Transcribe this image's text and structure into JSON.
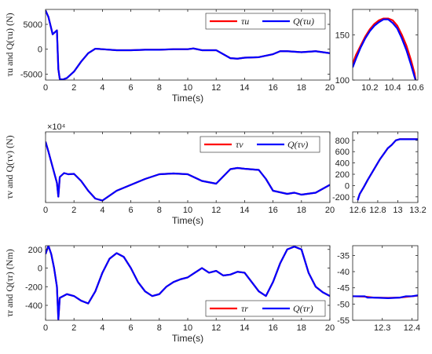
{
  "figure": {
    "panels": [
      {
        "id": "tau-u-main",
        "ylabel": "τu and Q(τu) (N)",
        "xlabel": "Time(s)",
        "xlim": [
          0,
          20
        ],
        "ylim": [
          -6200,
          8000
        ],
        "xticks": [
          0,
          2,
          4,
          6,
          8,
          10,
          12,
          14,
          16,
          18,
          20
        ],
        "yticks": [
          5000,
          0,
          -5000
        ],
        "yticklabels": [
          "5000",
          "0",
          "-5000"
        ],
        "exponent": "",
        "legend": {
          "position": "top-right",
          "entries": [
            "τu",
            "Q(τu)"
          ]
        }
      },
      {
        "id": "tau-u-zoom",
        "xlim": [
          10.05,
          10.62
        ],
        "ylim": [
          100,
          178
        ],
        "xticks": [
          10.2,
          10.4,
          10.6
        ],
        "xticklabels": [
          "10.2",
          "10.4",
          "10.6"
        ],
        "yticks": [
          150,
          100
        ],
        "yticklabels": [
          "150",
          "100"
        ]
      },
      {
        "id": "tau-v-main",
        "ylabel": "τv and Q(τv) (N)",
        "xlabel": "Time(s)",
        "xlim": [
          0,
          20
        ],
        "ylim": [
          -8,
          10
        ],
        "xticks": [
          0,
          2,
          4,
          6,
          8,
          10,
          12,
          14,
          16,
          18,
          20
        ],
        "yticks": [],
        "yticklabels": [],
        "exponent": "×10⁴",
        "legend": {
          "position": "top-left",
          "entries": [
            "τv",
            "Q(τv)"
          ]
        }
      },
      {
        "id": "tau-v-zoom",
        "xlim": [
          12.55,
          13.2
        ],
        "ylim": [
          -300,
          950
        ],
        "xticks": [
          12.6,
          12.8,
          13,
          13.2
        ],
        "xticklabels": [
          "12.6",
          "12.8",
          "13",
          "13.2"
        ],
        "yticks": [
          800,
          600,
          400,
          200,
          0,
          -200
        ],
        "yticklabels": [
          "800",
          "600",
          "400",
          "200",
          "0",
          "-200"
        ]
      },
      {
        "id": "tau-r-main",
        "ylabel": "τr and Q(τr) (Nm)",
        "xlabel": "Time(s)",
        "xlim": [
          0,
          20
        ],
        "ylim": [
          -560,
          240
        ],
        "xticks": [
          0,
          2,
          4,
          6,
          8,
          10,
          12,
          14,
          16,
          18,
          20
        ],
        "yticks": [
          200,
          0,
          -200,
          -400
        ],
        "yticklabels": [
          "200",
          "0",
          "-200",
          "-400"
        ],
        "exponent": "",
        "legend": {
          "position": "bottom-right",
          "entries": [
            "τr",
            "Q(τr)"
          ]
        }
      },
      {
        "id": "tau-r-zoom",
        "xlim": [
          12.2,
          12.42
        ],
        "ylim": [
          -55,
          -32
        ],
        "xticks": [
          12.3,
          12.4
        ],
        "xticklabels": [
          "12.3",
          "12.4"
        ],
        "yticks": [
          -35,
          -40,
          -45,
          -50,
          -55
        ],
        "yticklabels": [
          "-35",
          "-40",
          "-45",
          "-50",
          "-55"
        ]
      }
    ],
    "colors": {
      "series1": "#ff0000",
      "series2": "#0000ff",
      "axes": "#222222"
    }
  },
  "chart_data": [
    {
      "type": "line",
      "title": "",
      "xlabel": "Time(s)",
      "ylabel": "τu and Q(τu) (N)",
      "xlim": [
        0,
        20
      ],
      "ylim": [
        -6200,
        8000
      ],
      "grid": false,
      "legend": "top-right",
      "series": [
        {
          "name": "τu",
          "x": [
            0,
            0.2,
            0.5,
            0.8,
            0.9,
            1.0,
            1.2,
            1.5,
            2,
            2.5,
            3,
            3.5,
            4,
            5,
            6,
            7,
            8,
            9,
            10,
            10.4,
            11,
            12,
            13,
            13.5,
            14,
            15,
            16,
            16.5,
            17,
            18,
            19,
            20
          ],
          "y": [
            7800,
            6500,
            3000,
            3800,
            -4000,
            -6000,
            -6100,
            -5800,
            -4500,
            -2500,
            -800,
            100,
            0,
            -200,
            -200,
            -100,
            -100,
            0,
            0,
            150,
            -200,
            -200,
            -1800,
            -1900,
            -1700,
            -1600,
            -1000,
            -400,
            -400,
            -600,
            -400,
            -800
          ]
        },
        {
          "name": "Q(τu)",
          "x": [
            0,
            0.2,
            0.5,
            0.8,
            0.9,
            1.0,
            1.2,
            1.5,
            2,
            2.5,
            3,
            3.5,
            4,
            5,
            6,
            7,
            8,
            9,
            10,
            10.4,
            11,
            12,
            13,
            13.5,
            14,
            15,
            16,
            16.5,
            17,
            18,
            19,
            20
          ],
          "y": [
            7800,
            6500,
            3000,
            3800,
            -4000,
            -6000,
            -6100,
            -5800,
            -4500,
            -2500,
            -800,
            100,
            0,
            -200,
            -200,
            -100,
            -100,
            0,
            0,
            150,
            -200,
            -200,
            -1800,
            -1900,
            -1700,
            -1600,
            -1000,
            -400,
            -400,
            -600,
            -400,
            -800
          ]
        }
      ]
    },
    {
      "type": "line",
      "title": "",
      "xlabel": "",
      "ylabel": "",
      "xlim": [
        10.05,
        10.62
      ],
      "ylim": [
        100,
        178
      ],
      "grid": false,
      "series": [
        {
          "name": "τu",
          "x": [
            10.05,
            10.08,
            10.12,
            10.16,
            10.2,
            10.24,
            10.28,
            10.32,
            10.36,
            10.4,
            10.44,
            10.48,
            10.52,
            10.56,
            10.59,
            10.6
          ],
          "y": [
            118,
            128,
            138,
            148,
            156,
            162,
            166,
            168,
            168,
            166,
            160,
            150,
            138,
            122,
            108,
            100
          ]
        },
        {
          "name": "Q(τu)",
          "x": [
            10.05,
            10.08,
            10.12,
            10.16,
            10.2,
            10.24,
            10.28,
            10.32,
            10.36,
            10.4,
            10.44,
            10.48,
            10.52,
            10.56,
            10.59,
            10.6
          ],
          "y": [
            114,
            124,
            136,
            146,
            154,
            160,
            164,
            167,
            167,
            163,
            157,
            146,
            133,
            117,
            104,
            100
          ]
        }
      ]
    },
    {
      "type": "line",
      "title": "",
      "xlabel": "Time(s)",
      "ylabel": "τv and Q(τv) (N)",
      "xlim": [
        0,
        20
      ],
      "ylim": [
        -8,
        10
      ],
      "grid": false,
      "legend": "top-left",
      "series": [
        {
          "name": "τv",
          "x": [
            0,
            0.2,
            0.5,
            0.8,
            0.9,
            1.0,
            1.3,
            1.6,
            2,
            2.5,
            3,
            3.5,
            4,
            5,
            6,
            7,
            8,
            9,
            10,
            11,
            12,
            13,
            13.5,
            14,
            15,
            15.5,
            16,
            17,
            17.5,
            18,
            19,
            20
          ],
          "y": [
            7.5,
            5,
            1,
            -3,
            -6.5,
            -1.5,
            -0.5,
            -0.8,
            -0.7,
            -2.5,
            -5,
            -7,
            -7.5,
            -5,
            -3.5,
            -2,
            -0.8,
            -0.6,
            -0.8,
            -2.5,
            -3.2,
            0.5,
            0.8,
            0.6,
            0.3,
            -2,
            -5,
            -5.8,
            -5.5,
            -6,
            -5.5,
            -3.5
          ]
        },
        {
          "name": "Q(τv)",
          "x": [
            0,
            0.2,
            0.5,
            0.8,
            0.9,
            1.0,
            1.3,
            1.6,
            2,
            2.5,
            3,
            3.5,
            4,
            5,
            6,
            7,
            8,
            9,
            10,
            11,
            12,
            13,
            13.5,
            14,
            15,
            15.5,
            16,
            17,
            17.5,
            18,
            19,
            20
          ],
          "y": [
            7.5,
            5,
            1,
            -3,
            -6.5,
            -1.5,
            -0.5,
            -0.8,
            -0.7,
            -2.5,
            -5,
            -7,
            -7.5,
            -5,
            -3.5,
            -2,
            -0.8,
            -0.6,
            -0.8,
            -2.5,
            -3.2,
            0.5,
            0.8,
            0.6,
            0.3,
            -2,
            -5,
            -5.8,
            -5.5,
            -6,
            -5.5,
            -3.5
          ]
        }
      ]
    },
    {
      "type": "line",
      "title": "",
      "xlabel": "",
      "ylabel": "",
      "xlim": [
        12.55,
        13.2
      ],
      "ylim": [
        -300,
        950
      ],
      "grid": false,
      "series": [
        {
          "name": "τv",
          "x": [
            12.6,
            12.62,
            12.66,
            12.7,
            12.74,
            12.78,
            12.82,
            12.86,
            12.9,
            12.94,
            12.98,
            13.02,
            13.2
          ],
          "y": [
            -260,
            -150,
            -30,
            100,
            220,
            340,
            460,
            560,
            660,
            720,
            800,
            820,
            820
          ]
        },
        {
          "name": "Q(τv)",
          "x": [
            12.6,
            12.62,
            12.66,
            12.7,
            12.74,
            12.78,
            12.82,
            12.86,
            12.9,
            12.94,
            12.98,
            13.02,
            13.2
          ],
          "y": [
            -260,
            -150,
            -30,
            100,
            220,
            340,
            460,
            560,
            660,
            720,
            800,
            820,
            820
          ]
        }
      ]
    },
    {
      "type": "line",
      "title": "",
      "xlabel": "Time(s)",
      "ylabel": "τr and Q(τr) (Nm)",
      "xlim": [
        0,
        20
      ],
      "ylim": [
        -560,
        240
      ],
      "grid": false,
      "legend": "bottom-right",
      "series": [
        {
          "name": "τr",
          "x": [
            0,
            0.2,
            0.4,
            0.6,
            0.8,
            0.9,
            1.0,
            1.5,
            2,
            2.5,
            3,
            3.5,
            4,
            4.5,
            5,
            5.5,
            6,
            6.5,
            7,
            7.5,
            8,
            8.5,
            9,
            9.5,
            10,
            10.5,
            11,
            11.5,
            12,
            12.5,
            13,
            13.5,
            14,
            14.5,
            15,
            15.5,
            16,
            16.5,
            17,
            17.5,
            18,
            18.5,
            19,
            19.5,
            20
          ],
          "y": [
            150,
            240,
            150,
            0,
            -200,
            -550,
            -320,
            -280,
            -300,
            -350,
            -380,
            -250,
            -50,
            100,
            160,
            120,
            0,
            -150,
            -250,
            -300,
            -280,
            -200,
            -150,
            -120,
            -100,
            -50,
            0,
            -50,
            -30,
            -80,
            -70,
            -40,
            -50,
            -150,
            -250,
            -300,
            -150,
            50,
            200,
            230,
            200,
            -50,
            -200,
            -260,
            -300
          ]
        },
        {
          "name": "Q(τr)",
          "x": [
            0,
            0.2,
            0.4,
            0.6,
            0.8,
            0.9,
            1.0,
            1.5,
            2,
            2.5,
            3,
            3.5,
            4,
            4.5,
            5,
            5.5,
            6,
            6.5,
            7,
            7.5,
            8,
            8.5,
            9,
            9.5,
            10,
            10.5,
            11,
            11.5,
            12,
            12.5,
            13,
            13.5,
            14,
            14.5,
            15,
            15.5,
            16,
            16.5,
            17,
            17.5,
            18,
            18.5,
            19,
            19.5,
            20
          ],
          "y": [
            150,
            240,
            150,
            0,
            -200,
            -550,
            -320,
            -280,
            -300,
            -350,
            -380,
            -250,
            -50,
            100,
            160,
            120,
            0,
            -150,
            -250,
            -300,
            -280,
            -200,
            -150,
            -120,
            -100,
            -50,
            0,
            -50,
            -30,
            -80,
            -70,
            -40,
            -50,
            -150,
            -250,
            -300,
            -150,
            50,
            200,
            230,
            200,
            -50,
            -200,
            -260,
            -300
          ]
        }
      ]
    },
    {
      "type": "line",
      "title": "",
      "xlabel": "",
      "ylabel": "",
      "xlim": [
        12.2,
        12.42
      ],
      "ylim": [
        -55,
        -32
      ],
      "grid": false,
      "series": [
        {
          "name": "τr",
          "x": [
            12.2,
            12.24,
            12.27,
            12.32,
            12.36,
            12.4,
            12.42
          ],
          "y": [
            -47.6,
            -47.7,
            -48,
            -48.1,
            -48,
            -47.6,
            -47.4
          ]
        },
        {
          "name": "Q(τr)",
          "x": [
            12.2,
            12.24,
            12.25,
            12.27,
            12.32,
            12.36,
            12.38,
            12.4,
            12.42
          ],
          "y": [
            -47.6,
            -47.6,
            -48,
            -48,
            -48.2,
            -48,
            -47.6,
            -47.6,
            -47.3
          ]
        }
      ]
    }
  ]
}
